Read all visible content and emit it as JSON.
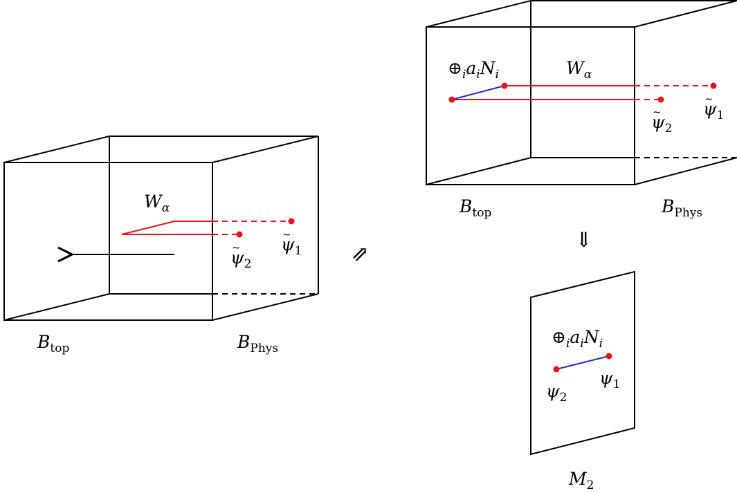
{
  "colors": {
    "edge": "#000000",
    "wilson_line": "#e8141a",
    "junction": "#1f2bd6",
    "point": "#e8141a"
  },
  "left_box": {
    "label_top": {
      "base": "B",
      "sub": "top"
    },
    "label_phys": {
      "base": "B",
      "sub": "Phys"
    },
    "label_w": {
      "base": "W",
      "sub": "α"
    },
    "label_psi1": {
      "base": "ψ",
      "sub": "1"
    },
    "label_psi2": {
      "base": "ψ",
      "sub": "2"
    }
  },
  "right_box": {
    "label_top": {
      "base": "B",
      "sub": "top"
    },
    "label_phys": {
      "base": "B",
      "sub": "Phys"
    },
    "label_w": {
      "base": "W",
      "sub": "α"
    },
    "label_sum": {
      "prefix": "⊕",
      "i1": "i",
      "a": "a",
      "i2": "i",
      "n": "N",
      "i3": "i"
    },
    "label_psi1": {
      "base": "ψ",
      "sub": "1"
    },
    "label_psi2": {
      "base": "ψ",
      "sub": "2"
    }
  },
  "plane": {
    "label_sum": {
      "prefix": "⊕",
      "i1": "i",
      "a": "a",
      "i2": "i",
      "n": "N",
      "i3": "i"
    },
    "label_psi1": {
      "base": "ψ",
      "sub": "1"
    },
    "label_psi2": {
      "base": "ψ",
      "sub": "2"
    },
    "label_m": {
      "base": "M",
      "sub": "2"
    }
  },
  "arrows": {
    "diag": "⇗",
    "down": "⇓"
  }
}
